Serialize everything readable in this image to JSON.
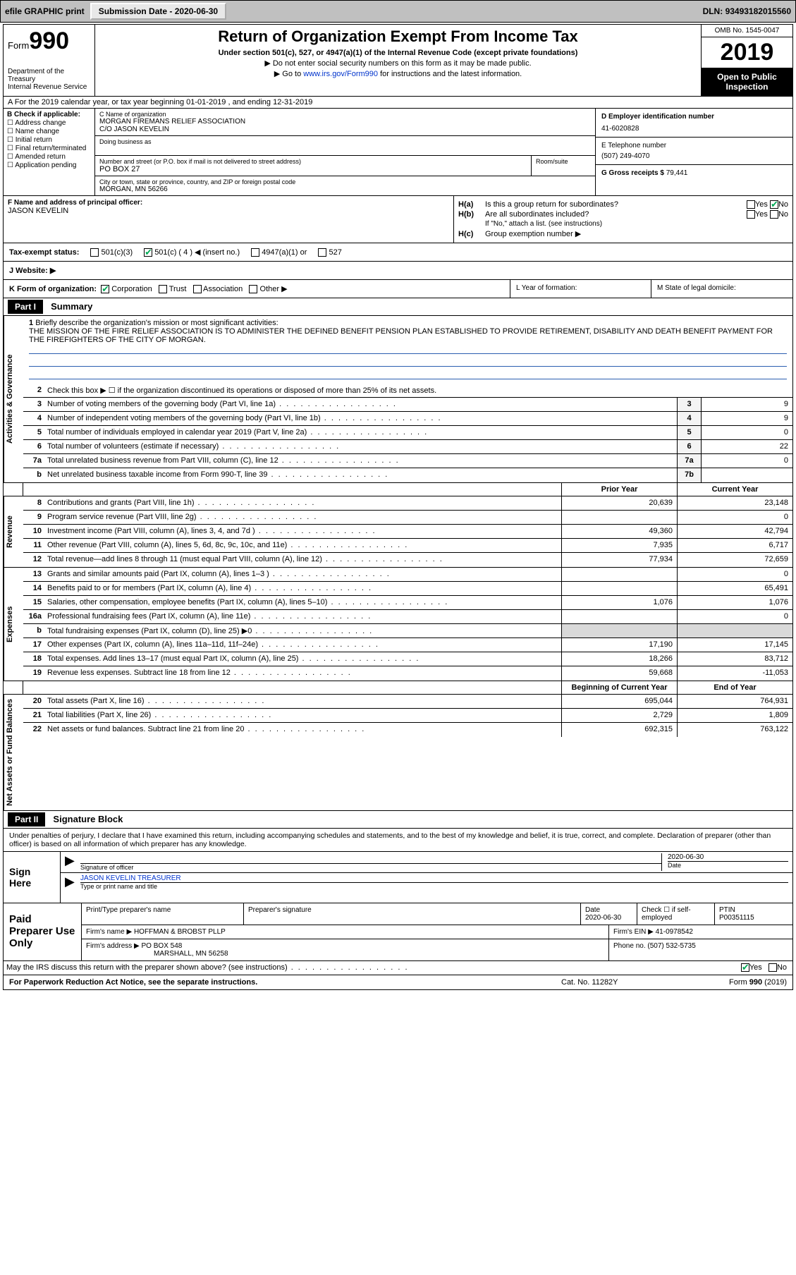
{
  "topbar": {
    "efile": "efile GRAPHIC print",
    "sub_lbl": "Submission Date - ",
    "sub_date": "2020-06-30",
    "dln_lbl": "DLN: ",
    "dln": "93493182015560"
  },
  "hdr": {
    "form_word": "Form",
    "form_no": "990",
    "dept": "Department of the Treasury",
    "irs": "Internal Revenue Service",
    "title": "Return of Organization Exempt From Income Tax",
    "sub1": "Under section 501(c), 527, or 4947(a)(1) of the Internal Revenue Code (except private foundations)",
    "sub2": "▶ Do not enter social security numbers on this form as it may be made public.",
    "sub3_pre": "▶ Go to ",
    "sub3_link": "www.irs.gov/Form990",
    "sub3_post": " for instructions and the latest information.",
    "omb": "OMB No. 1545-0047",
    "year": "2019",
    "pub1": "Open to Public",
    "pub2": "Inspection"
  },
  "row_a": "A For the 2019 calendar year, or tax year beginning 01-01-2019   , and ending 12-31-2019",
  "block_b": {
    "head": "B Check if applicable:",
    "opts": [
      "Address change",
      "Name change",
      "Initial return",
      "Final return/terminated",
      "Amended return",
      "Application pending"
    ],
    "c_name_lbl": "C Name of organization",
    "c_name": "MORGAN FIREMANS RELIEF ASSOCIATION",
    "co": "C/O JASON KEVELIN",
    "dba_lbl": "Doing business as",
    "addr_lbl": "Number and street (or P.O. box if mail is not delivered to street address)",
    "room_lbl": "Room/suite",
    "addr": "PO BOX 27",
    "city_lbl": "City or town, state or province, country, and ZIP or foreign postal code",
    "city": "MORGAN, MN  56266",
    "d_lbl": "D Employer identification number",
    "d_val": "41-6020828",
    "e_lbl": "E Telephone number",
    "e_val": "(507) 249-4070",
    "g_lbl": "G Gross receipts $ ",
    "g_val": "79,441"
  },
  "block_f": {
    "f_lbl": "F  Name and address of principal officer:",
    "f_name": "JASON KEVELIN",
    "ha": "Is this a group return for subordinates?",
    "hb": "Are all subordinates included?",
    "hb_note": "If \"No,\" attach a list. (see instructions)",
    "hc": "Group exemption number ▶",
    "yes": "Yes",
    "no": "No"
  },
  "tax_status": {
    "lbl": "Tax-exempt status:",
    "o1": "501(c)(3)",
    "o2": "501(c) ( 4 ) ◀ (insert no.)",
    "o3": "4947(a)(1) or",
    "o4": "527"
  },
  "j": "J   Website: ▶",
  "k": {
    "lbl": "K Form of organization:",
    "o1": "Corporation",
    "o2": "Trust",
    "o3": "Association",
    "o4": "Other ▶",
    "l": "L Year of formation:",
    "m": "M State of legal domicile:"
  },
  "part1": {
    "hdr": "Part I",
    "title": "Summary",
    "l1_lbl": "Briefly describe the organization's mission or most significant activities:",
    "l1_txt": "THE MISSION OF THE FIRE RELIEF ASSOCIATION IS TO ADMINISTER THE DEFINED BENEFIT PENSION PLAN ESTABLISHED TO PROVIDE RETIREMENT, DISABILITY AND DEATH BENEFIT PAYMENT FOR THE FIREFIGHTERS OF THE CITY OF MORGAN.",
    "l2": "Check this box ▶ ☐  if the organization discontinued its operations or disposed of more than 25% of its net assets.",
    "sections": {
      "gov": "Activities & Governance",
      "rev": "Revenue",
      "exp": "Expenses",
      "net": "Net Assets or Fund Balances"
    },
    "col_prior": "Prior Year",
    "col_curr": "Current Year",
    "lines_gov": [
      {
        "n": "3",
        "t": "Number of voting members of the governing body (Part VI, line 1a)",
        "b": "3",
        "v": "9"
      },
      {
        "n": "4",
        "t": "Number of independent voting members of the governing body (Part VI, line 1b)",
        "b": "4",
        "v": "9"
      },
      {
        "n": "5",
        "t": "Total number of individuals employed in calendar year 2019 (Part V, line 2a)",
        "b": "5",
        "v": "0"
      },
      {
        "n": "6",
        "t": "Total number of volunteers (estimate if necessary)",
        "b": "6",
        "v": "22"
      },
      {
        "n": "7a",
        "t": "Total unrelated business revenue from Part VIII, column (C), line 12",
        "b": "7a",
        "v": "0"
      },
      {
        "n": "b",
        "t": "Net unrelated business taxable income from Form 990-T, line 39",
        "b": "7b",
        "v": ""
      }
    ],
    "lines_rev": [
      {
        "n": "8",
        "t": "Contributions and grants (Part VIII, line 1h)",
        "p": "20,639",
        "c": "23,148"
      },
      {
        "n": "9",
        "t": "Program service revenue (Part VIII, line 2g)",
        "p": "",
        "c": "0"
      },
      {
        "n": "10",
        "t": "Investment income (Part VIII, column (A), lines 3, 4, and 7d )",
        "p": "49,360",
        "c": "42,794"
      },
      {
        "n": "11",
        "t": "Other revenue (Part VIII, column (A), lines 5, 6d, 8c, 9c, 10c, and 11e)",
        "p": "7,935",
        "c": "6,717"
      },
      {
        "n": "12",
        "t": "Total revenue—add lines 8 through 11 (must equal Part VIII, column (A), line 12)",
        "p": "77,934",
        "c": "72,659"
      }
    ],
    "lines_exp": [
      {
        "n": "13",
        "t": "Grants and similar amounts paid (Part IX, column (A), lines 1–3 )",
        "p": "",
        "c": "0"
      },
      {
        "n": "14",
        "t": "Benefits paid to or for members (Part IX, column (A), line 4)",
        "p": "",
        "c": "65,491"
      },
      {
        "n": "15",
        "t": "Salaries, other compensation, employee benefits (Part IX, column (A), lines 5–10)",
        "p": "1,076",
        "c": "1,076"
      },
      {
        "n": "16a",
        "t": "Professional fundraising fees (Part IX, column (A), line 11e)",
        "p": "",
        "c": "0"
      },
      {
        "n": "b",
        "t": "Total fundraising expenses (Part IX, column (D), line 25) ▶0",
        "p": "shade",
        "c": "shade"
      },
      {
        "n": "17",
        "t": "Other expenses (Part IX, column (A), lines 11a–11d, 11f–24e)",
        "p": "17,190",
        "c": "17,145"
      },
      {
        "n": "18",
        "t": "Total expenses. Add lines 13–17 (must equal Part IX, column (A), line 25)",
        "p": "18,266",
        "c": "83,712"
      },
      {
        "n": "19",
        "t": "Revenue less expenses. Subtract line 18 from line 12",
        "p": "59,668",
        "c": "-11,053"
      }
    ],
    "net_hdr_b": "Beginning of Current Year",
    "net_hdr_e": "End of Year",
    "lines_net": [
      {
        "n": "20",
        "t": "Total assets (Part X, line 16)",
        "p": "695,044",
        "c": "764,931"
      },
      {
        "n": "21",
        "t": "Total liabilities (Part X, line 26)",
        "p": "2,729",
        "c": "1,809"
      },
      {
        "n": "22",
        "t": "Net assets or fund balances. Subtract line 21 from line 20",
        "p": "692,315",
        "c": "763,122"
      }
    ]
  },
  "part2": {
    "hdr": "Part II",
    "title": "Signature Block",
    "decl": "Under penalties of perjury, I declare that I have examined this return, including accompanying schedules and statements, and to the best of my knowledge and belief, it is true, correct, and complete. Declaration of preparer (other than officer) is based on all information of which preparer has any knowledge."
  },
  "sign": {
    "here": "Sign Here",
    "sig_lbl": "Signature of officer",
    "date_lbl": "Date",
    "date": "2020-06-30",
    "name": "JASON KEVELIN  TREASURER",
    "name_lbl": "Type or print name and title"
  },
  "prep": {
    "lbl": "Paid Preparer Use Only",
    "c1": "Print/Type preparer's name",
    "c2": "Preparer's signature",
    "c3": "Date",
    "c3v": "2020-06-30",
    "c4": "Check ☐ if self-employed",
    "c5": "PTIN",
    "c5v": "P00351115",
    "firm_lbl": "Firm's name    ▶",
    "firm": "HOFFMAN & BROBST PLLP",
    "ein_lbl": "Firm's EIN ▶",
    "ein": "41-0978542",
    "addr_lbl": "Firm's address ▶",
    "addr1": "PO BOX 548",
    "addr2": "MARSHALL, MN  56258",
    "ph_lbl": "Phone no.",
    "ph": "(507) 532-5735",
    "discuss": "May the IRS discuss this return with the preparer shown above? (see instructions)"
  },
  "footer": {
    "l": "For Paperwork Reduction Act Notice, see the separate instructions.",
    "c": "Cat. No. 11282Y",
    "r": "Form 990 (2019)"
  }
}
